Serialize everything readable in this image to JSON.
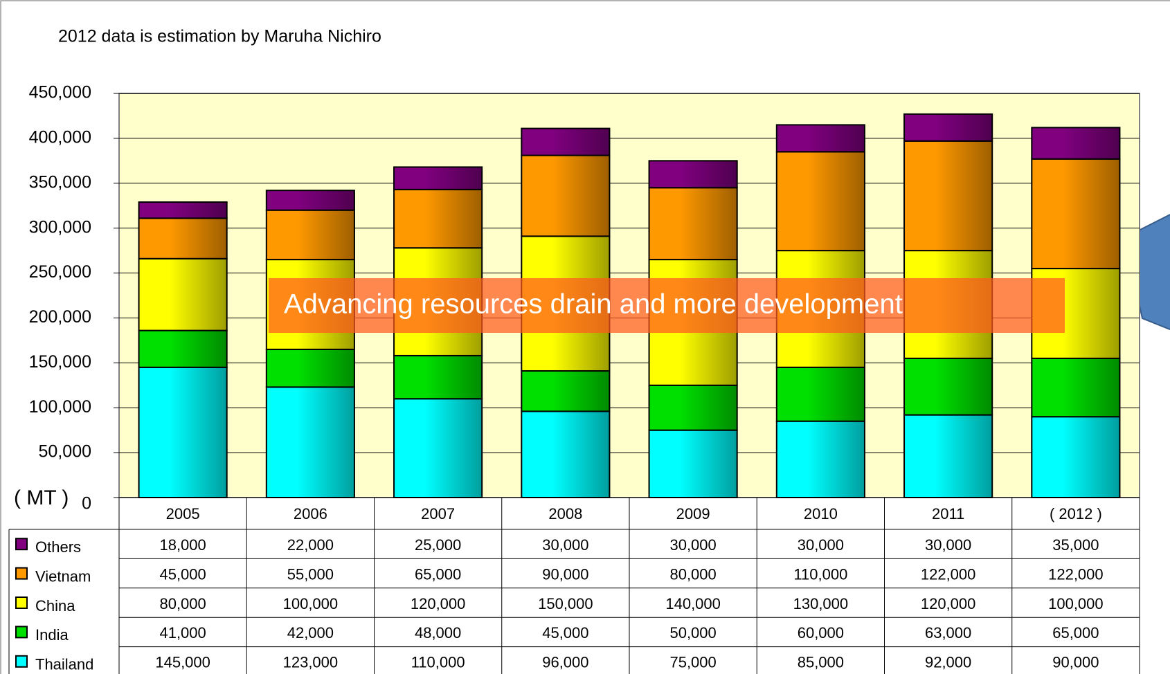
{
  "chart_data": {
    "type": "bar",
    "stacked": true,
    "note": "2012 data is estimation by Maruha Nichiro",
    "unit_label": "( MT )",
    "annotation": "Advancing resources drain  and more development",
    "categories": [
      "2005",
      "2006",
      "2007",
      "2008",
      "2009",
      "2010",
      "2011",
      "( 2012 )"
    ],
    "series": [
      {
        "name": "Thailand",
        "color": "#00ffff",
        "values": [
          145000,
          123000,
          110000,
          96000,
          75000,
          85000,
          92000,
          90000
        ],
        "value_labels": [
          "145,000",
          "123,000",
          "110,000",
          "96,000",
          "75,000",
          "85,000",
          "92,000",
          "90,000"
        ]
      },
      {
        "name": "India",
        "color": "#00e000",
        "values": [
          41000,
          42000,
          48000,
          45000,
          50000,
          60000,
          63000,
          65000
        ],
        "value_labels": [
          "41,000",
          "42,000",
          "48,000",
          "45,000",
          "50,000",
          "60,000",
          "63,000",
          "65,000"
        ]
      },
      {
        "name": "China",
        "color": "#ffff00",
        "values": [
          80000,
          100000,
          120000,
          150000,
          140000,
          130000,
          120000,
          100000
        ],
        "value_labels": [
          "80,000",
          "100,000",
          "120,000",
          "150,000",
          "140,000",
          "130,000",
          "120,000",
          "100,000"
        ]
      },
      {
        "name": "Vietnam",
        "color": "#ff9900",
        "values": [
          45000,
          55000,
          65000,
          90000,
          80000,
          110000,
          122000,
          122000
        ],
        "value_labels": [
          "45,000",
          "55,000",
          "65,000",
          "90,000",
          "80,000",
          "110,000",
          "122,000",
          "122,000"
        ]
      },
      {
        "name": "Others",
        "color": "#800080",
        "values": [
          18000,
          22000,
          25000,
          30000,
          30000,
          30000,
          30000,
          35000
        ],
        "value_labels": [
          "18,000",
          "22,000",
          "25,000",
          "30,000",
          "30,000",
          "30,000",
          "30,000",
          "35,000"
        ]
      }
    ],
    "ylim": [
      0,
      450000
    ],
    "yticks": [
      0,
      {
        "value": 50000,
        "label": "50,000"
      },
      {
        "value": 100000,
        "label": "100,000"
      },
      {
        "value": 150000,
        "label": "150,000"
      },
      {
        "value": 200000,
        "label": "200,000"
      },
      {
        "value": 250000,
        "label": "250,000"
      },
      {
        "value": 300000,
        "label": "300,000"
      },
      {
        "value": 350000,
        "label": "350,000"
      },
      {
        "value": 400000,
        "label": "400,000"
      },
      {
        "value": 450000,
        "label": "450,000"
      }
    ],
    "grid": true,
    "plot_background": "#ffffcc"
  }
}
